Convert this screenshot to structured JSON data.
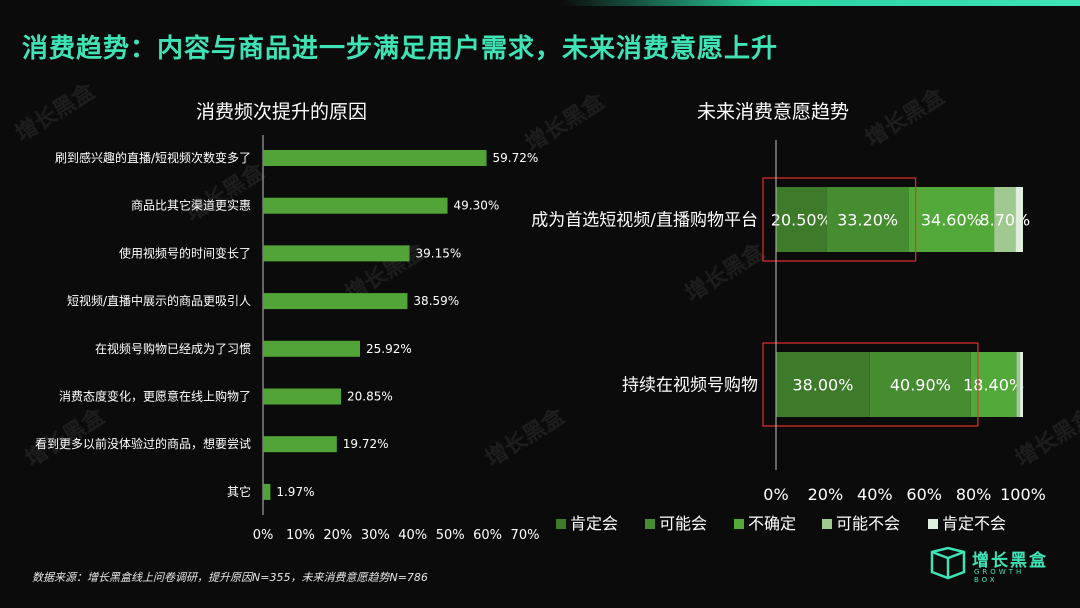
{
  "page": {
    "title": "消费趋势：内容与商品进一步满足用户需求，未来消费意愿上升",
    "source_note": "数据来源：增长黑盒线上问卷调研，提升原因N=355，未来消费意愿趋势N=786",
    "logo_text": "增长黑盒",
    "logo_sub": "GROWTH BOX",
    "watermark_text": "增长黑盒",
    "colors": {
      "accent": "#3fe3b6",
      "bar": "#52a438"
    }
  },
  "chart_data": [
    {
      "type": "bar",
      "orientation": "horizontal",
      "title": "消费频次提升的原因",
      "categories": [
        "刷到感兴趣的直播/短视频次数变多了",
        "商品比其它渠道更实惠",
        "使用视频号的时间变长了",
        "短视频/直播中展示的商品更吸引人",
        "在视频号购物已经成为了习惯",
        "消费态度变化，更愿意在线上购物了",
        "看到更多以前没体验过的商品，想要尝试",
        "其它"
      ],
      "values": [
        59.72,
        49.3,
        39.15,
        38.59,
        25.92,
        20.85,
        19.72,
        1.97
      ],
      "value_labels": [
        "59.72%",
        "49.30%",
        "39.15%",
        "38.59%",
        "25.92%",
        "20.85%",
        "19.72%",
        "1.97%"
      ],
      "xlim": [
        0,
        70
      ],
      "xticks": [
        "0%",
        "10%",
        "20%",
        "30%",
        "40%",
        "50%",
        "60%",
        "70%"
      ],
      "grid": false
    },
    {
      "type": "bar",
      "orientation": "horizontal",
      "stacked": true,
      "title": "未来消费意愿趋势",
      "categories": [
        "成为首选短视频/直播购物平台",
        "持续在视频号购物"
      ],
      "series": [
        {
          "name": "肯定会",
          "color": "#3d7a2a",
          "values": [
            20.5,
            38.0
          ],
          "labels": [
            "20.50%",
            "38.00%"
          ]
        },
        {
          "name": "可能会",
          "color": "#468c30",
          "values": [
            33.2,
            40.9
          ],
          "labels": [
            "33.20%",
            "40.90%"
          ]
        },
        {
          "name": "不确定",
          "color": "#53a83a",
          "values": [
            34.6,
            18.4
          ],
          "labels": [
            "34.60%",
            "18.40%"
          ]
        },
        {
          "name": "可能不会",
          "color": "#9fc98f",
          "values": [
            8.7,
            1.5
          ],
          "labels": [
            "8.70%",
            ""
          ]
        },
        {
          "name": "肯定不会",
          "color": "#dfeede",
          "values": [
            3.0,
            1.2
          ],
          "labels": [
            "",
            ""
          ]
        }
      ],
      "xlim": [
        0,
        100
      ],
      "xticks": [
        "0%",
        "20%",
        "40%",
        "60%",
        "80%",
        "100%"
      ],
      "legend": "bottom",
      "highlight": "red boxes around the first two segments of each bar",
      "grid": false
    }
  ]
}
